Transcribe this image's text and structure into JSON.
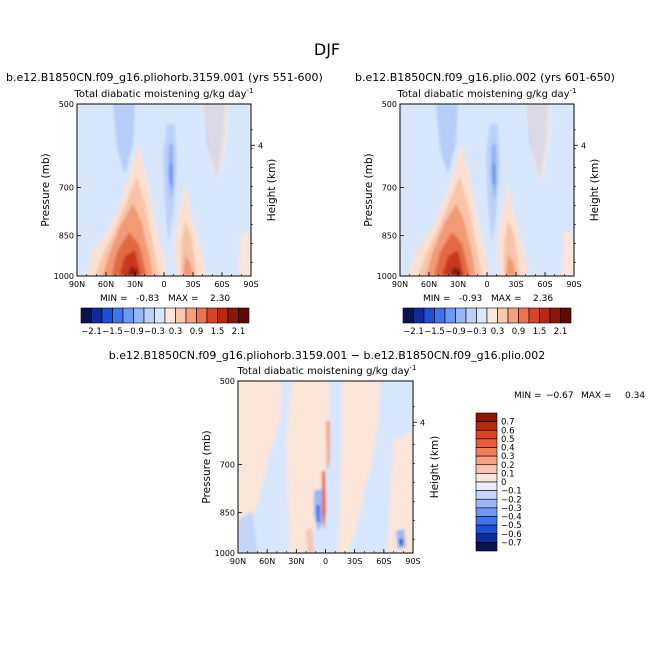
{
  "page_title": "DJF",
  "chart_data": [
    {
      "type": "heatmap",
      "title": "b.e12.B1850CN.f09_g16.pliohorb.3159.001 (yrs 551-600)",
      "subtitle": "Total diabatic moistening",
      "units": "g/kg day",
      "units_exp": "-1",
      "xlabel": "",
      "ylabel": "Pressure  (mb)",
      "y2label": "Height  (km)",
      "xticks": [
        "90N",
        "60N",
        "30N",
        "0",
        "30S",
        "60S",
        "90S"
      ],
      "yticks": [
        "500",
        "700",
        "850",
        "1000"
      ],
      "y2ticks": [
        "4"
      ],
      "min": -0.83,
      "max": 2.3,
      "min_label": "MIN =",
      "min_text": "-0.83",
      "max_label": "MAX =",
      "max_text": "2.30"
    },
    {
      "type": "heatmap",
      "title": "b.e12.B1850CN.f09_g16.plio.002 (yrs 601-650)",
      "subtitle": "Total diabatic moistening",
      "units": "g/kg day",
      "units_exp": "-1",
      "xlabel": "",
      "ylabel": "Pressure  (mb)",
      "y2label": "Height  (km)",
      "xticks": [
        "90N",
        "60N",
        "30N",
        "0",
        "30S",
        "60S",
        "90S"
      ],
      "yticks": [
        "500",
        "700",
        "850",
        "1000"
      ],
      "y2ticks": [
        "4"
      ],
      "min": -0.93,
      "max": 2.36,
      "min_label": "MIN =",
      "min_text": "-0.93",
      "max_label": "MAX =",
      "max_text": "2.36"
    },
    {
      "type": "heatmap",
      "title": "b.e12.B1850CN.f09_g16.pliohorb.3159.001 − b.e12.B1850CN.f09_g16.plio.002",
      "subtitle": "Total diabatic moistening",
      "units": "g/kg day",
      "units_exp": "-1",
      "xlabel": "",
      "ylabel": "Pressure  (mb)",
      "y2label": "Height  (km)",
      "xticks": [
        "90N",
        "60N",
        "30N",
        "0",
        "30S",
        "60S",
        "90S"
      ],
      "yticks": [
        "500",
        "700",
        "850",
        "1000"
      ],
      "y2ticks": [
        "4"
      ],
      "min": -0.67,
      "max": 0.34,
      "min_label": "MIN =",
      "min_text": "−0.67",
      "max_label": "MAX =",
      "max_text": "0.34"
    }
  ],
  "colorbar_main": {
    "labels": [
      "−2.1",
      "−1.5",
      "−0.9",
      "−0.3",
      "0.3",
      "0.9",
      "1.5",
      "2.1"
    ],
    "levels": [
      -2.1,
      -1.8,
      -1.5,
      -1.2,
      -0.9,
      -0.6,
      -0.3,
      0,
      0.3,
      0.6,
      0.9,
      1.2,
      1.5,
      1.8,
      2.1
    ],
    "colors": [
      "#08134f",
      "#102a9a",
      "#1f4fd6",
      "#3f74ee",
      "#6c97f3",
      "#98b6f6",
      "#bcd1f8",
      "#dbe7fb",
      "#fde6da",
      "#f9c8ae",
      "#f4a080",
      "#ec7250",
      "#d84525",
      "#b72810",
      "#8d1608",
      "#5e0a04"
    ]
  },
  "colorbar_diff": {
    "labels": [
      "0.7",
      "0.6",
      "0.5",
      "0.4",
      "0.3",
      "0.2",
      "0.1",
      "0",
      "−0.1",
      "−0.2",
      "−0.3",
      "−0.4",
      "−0.5",
      "−0.6",
      "−0.7"
    ],
    "colors": [
      "#8d1608",
      "#b72810",
      "#d84525",
      "#ec5a36",
      "#f27f5c",
      "#f6a286",
      "#f9c4ab",
      "#fde6da",
      "#e8effc",
      "#c3d5f8",
      "#9bb9f5",
      "#6e98f2",
      "#3f74ee",
      "#1f4fd6",
      "#102a9a",
      "#08134f"
    ]
  }
}
